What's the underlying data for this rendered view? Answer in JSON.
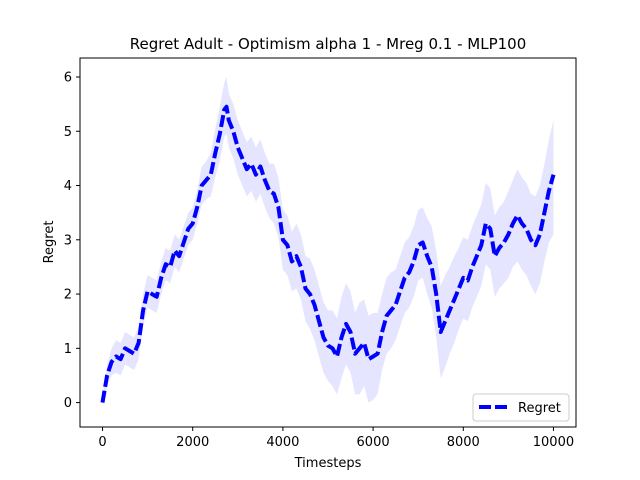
{
  "chart_data": {
    "type": "line",
    "title": "Regret Adult - Optimism alpha 1 - Mreg 0.1 - MLP100",
    "xlabel": "Timesteps",
    "ylabel": "Regret",
    "xlim": [
      -500,
      10500
    ],
    "ylim": [
      -0.45,
      6.35
    ],
    "x_ticks": [
      0,
      2000,
      4000,
      6000,
      8000,
      10000
    ],
    "y_ticks": [
      0,
      1,
      2,
      3,
      4,
      5,
      6
    ],
    "x_tick_labels": [
      "0",
      "2000",
      "4000",
      "6000",
      "8000",
      "10000"
    ],
    "y_tick_labels": [
      "0",
      "1",
      "2",
      "3",
      "4",
      "5",
      "6"
    ],
    "grid": false,
    "legend": {
      "position": "lower-right",
      "entries": [
        "Regret"
      ]
    },
    "colors": {
      "line": "#0000ff",
      "band": "#0000ff",
      "band_opacity": 0.1
    },
    "line_style": "dashed",
    "series": [
      {
        "name": "Regret",
        "x": [
          0,
          100,
          200,
          300,
          400,
          500,
          600,
          700,
          800,
          900,
          1000,
          1100,
          1200,
          1300,
          1400,
          1500,
          1600,
          1700,
          1800,
          1900,
          2000,
          2100,
          2200,
          2300,
          2400,
          2500,
          2600,
          2700,
          2750,
          2800,
          2900,
          3000,
          3100,
          3200,
          3300,
          3400,
          3500,
          3600,
          3700,
          3800,
          3900,
          4000,
          4100,
          4200,
          4300,
          4400,
          4500,
          4600,
          4700,
          4800,
          4900,
          5000,
          5100,
          5200,
          5300,
          5400,
          5500,
          5600,
          5700,
          5800,
          5900,
          6000,
          6100,
          6200,
          6300,
          6400,
          6500,
          6600,
          6700,
          6800,
          6900,
          7000,
          7100,
          7200,
          7300,
          7400,
          7500,
          7600,
          7700,
          7800,
          7900,
          8000,
          8100,
          8200,
          8300,
          8400,
          8500,
          8600,
          8700,
          8800,
          8900,
          9000,
          9100,
          9200,
          9300,
          9400,
          9500,
          9600,
          9700,
          9800,
          9900,
          10000
        ],
        "y": [
          0.0,
          0.5,
          0.75,
          0.85,
          0.8,
          1.0,
          0.95,
          0.9,
          1.1,
          1.7,
          2.05,
          2.0,
          1.95,
          2.3,
          2.55,
          2.5,
          2.8,
          2.7,
          2.95,
          3.2,
          3.3,
          3.6,
          4.0,
          4.1,
          4.2,
          4.6,
          4.95,
          5.4,
          5.45,
          5.2,
          5.0,
          4.7,
          4.5,
          4.3,
          4.4,
          4.2,
          4.35,
          4.1,
          3.9,
          3.85,
          3.6,
          3.0,
          2.9,
          2.6,
          2.7,
          2.5,
          2.1,
          2.0,
          1.8,
          1.5,
          1.2,
          1.05,
          1.0,
          0.85,
          1.2,
          1.45,
          1.3,
          0.9,
          1.0,
          1.1,
          0.8,
          0.85,
          0.9,
          1.3,
          1.6,
          1.7,
          1.8,
          2.05,
          2.3,
          2.4,
          2.6,
          2.9,
          2.95,
          2.7,
          2.5,
          2.0,
          1.3,
          1.5,
          1.7,
          1.9,
          2.1,
          2.3,
          2.25,
          2.5,
          2.7,
          2.9,
          3.3,
          3.2,
          2.7,
          2.85,
          2.95,
          3.1,
          3.3,
          3.45,
          3.3,
          3.2,
          3.0,
          2.9,
          3.1,
          3.5,
          3.9,
          4.2
        ],
        "lower": [
          -0.05,
          0.3,
          0.5,
          0.55,
          0.5,
          0.7,
          0.65,
          0.6,
          0.8,
          1.4,
          1.75,
          1.7,
          1.65,
          2.0,
          2.25,
          2.2,
          2.5,
          2.4,
          2.65,
          2.9,
          3.0,
          3.3,
          3.65,
          3.75,
          3.8,
          4.15,
          4.45,
          4.9,
          4.95,
          4.7,
          4.5,
          4.2,
          4.0,
          3.8,
          3.9,
          3.7,
          3.85,
          3.6,
          3.4,
          3.3,
          3.05,
          2.45,
          2.35,
          2.05,
          2.1,
          1.9,
          1.5,
          1.35,
          1.15,
          0.85,
          0.55,
          0.4,
          0.3,
          0.15,
          0.45,
          0.7,
          0.55,
          0.15,
          0.15,
          0.3,
          0.0,
          0.05,
          0.15,
          0.6,
          0.9,
          1.0,
          1.15,
          1.4,
          1.65,
          1.75,
          1.95,
          2.25,
          2.3,
          2.0,
          1.75,
          1.2,
          0.45,
          0.65,
          0.9,
          1.1,
          1.35,
          1.55,
          1.5,
          1.75,
          1.95,
          2.15,
          2.55,
          2.45,
          1.95,
          2.1,
          2.2,
          2.3,
          2.5,
          2.6,
          2.45,
          2.35,
          2.15,
          2.0,
          2.2,
          2.6,
          2.95,
          3.1
        ],
        "upper": [
          0.05,
          0.7,
          1.0,
          1.15,
          1.1,
          1.3,
          1.25,
          1.2,
          1.4,
          2.0,
          2.35,
          2.3,
          2.25,
          2.6,
          2.85,
          2.8,
          3.1,
          3.0,
          3.25,
          3.5,
          3.6,
          3.9,
          4.35,
          4.45,
          4.6,
          5.05,
          5.45,
          5.9,
          6.0,
          5.7,
          5.5,
          5.2,
          5.0,
          4.8,
          4.9,
          4.7,
          4.85,
          4.6,
          4.4,
          4.4,
          4.15,
          3.55,
          3.45,
          3.15,
          3.3,
          3.1,
          2.7,
          2.65,
          2.45,
          2.15,
          1.85,
          1.7,
          1.7,
          1.55,
          1.95,
          2.2,
          2.05,
          1.65,
          1.85,
          1.9,
          1.6,
          1.65,
          1.65,
          2.0,
          2.3,
          2.4,
          2.45,
          2.7,
          2.95,
          3.05,
          3.25,
          3.55,
          3.6,
          3.4,
          3.25,
          2.8,
          2.15,
          2.35,
          2.5,
          2.7,
          2.85,
          3.05,
          3.0,
          3.25,
          3.45,
          3.65,
          4.05,
          3.95,
          3.45,
          3.6,
          3.7,
          3.9,
          4.1,
          4.3,
          4.15,
          4.05,
          3.85,
          3.8,
          4.0,
          4.4,
          4.85,
          5.2
        ]
      }
    ]
  }
}
